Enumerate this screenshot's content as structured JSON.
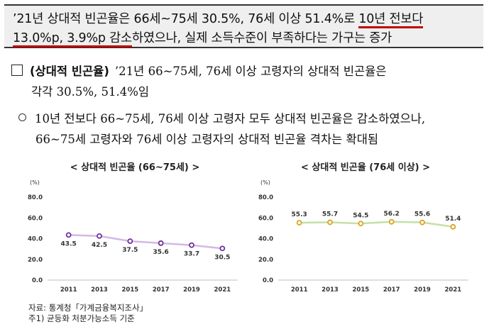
{
  "summary": {
    "line1_a": "’21년 상대적 빈곤율은 66세~75세 30.5%, 76세 이상 51.4%로 ",
    "line1_b": "10년 전보다",
    "line2_a": "13.0%p, 3.9%p 감소",
    "line2_b": "하였으나, 실제 소득수준이 부족하다는 가구는 증가"
  },
  "heading": {
    "title": "(상대적 빈곤율)",
    "text_a": "’21년 66~75세, 76세 이상 고령자의 상대적 빈곤율은",
    "text_b": "각각 30.5%, 51.4%임"
  },
  "bullet": {
    "line1": "10년 전보다 66~75세, 76세 이상 고령자 모두 상대적 빈곤율은 감소하였으나,",
    "line2": "66~75세 고령자와 76세 이상 고령자의 상대적 빈곤율 격차는 확대됨"
  },
  "colors": {
    "left_line": "#d3b8e6",
    "left_marker": "#7030a0",
    "right_line": "#c5e0a5",
    "right_marker": "#d9a520",
    "summary_underline": "#c00000"
  },
  "chart_data": [
    {
      "type": "line",
      "title": "< 상대적 빈곤율 (66~75세) >",
      "ylabel": "(%)",
      "x": [
        "2011",
        "2013",
        "2015",
        "2017",
        "2019",
        "2021"
      ],
      "values": [
        43.5,
        42.5,
        37.5,
        35.6,
        33.7,
        30.5
      ],
      "yticks": [
        "0.0",
        "20.0",
        "40.0",
        "60.0",
        "80.0"
      ],
      "ylim": [
        0,
        80
      ],
      "labels_position": "below",
      "grid": false
    },
    {
      "type": "line",
      "title": "< 상대적 빈곤율 (76세 이상) >",
      "ylabel": "(%)",
      "x": [
        "2011",
        "2013",
        "2015",
        "2017",
        "2019",
        "2021"
      ],
      "values": [
        55.3,
        55.7,
        54.5,
        56.2,
        55.6,
        51.4
      ],
      "yticks": [
        "0.0",
        "20.0",
        "40.0",
        "60.0",
        "80.0"
      ],
      "ylim": [
        0,
        80
      ],
      "labels_position": "above",
      "grid": false
    }
  ],
  "source": {
    "line1": "자료: 통계청「가계금융복지조사」",
    "line2": "주1) 균등화 처분가능소득 기준"
  }
}
